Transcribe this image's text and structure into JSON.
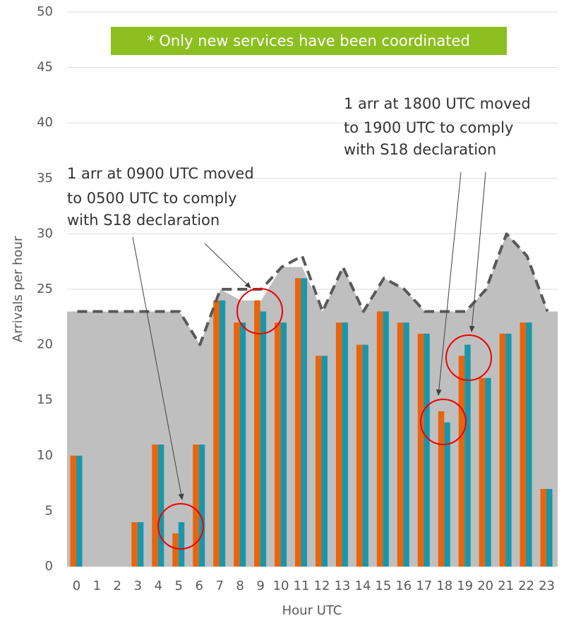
{
  "chart_data": {
    "type": "bar",
    "categories": [
      "0",
      "1",
      "2",
      "3",
      "4",
      "5",
      "6",
      "7",
      "8",
      "9",
      "10",
      "11",
      "12",
      "13",
      "14",
      "15",
      "16",
      "17",
      "18",
      "19",
      "20",
      "21",
      "22",
      "23"
    ],
    "series": [
      {
        "color": "#e8650d",
        "values": [
          10,
          0,
          0,
          4,
          11,
          3,
          11,
          24,
          22,
          24,
          22,
          26,
          19,
          22,
          20,
          23,
          22,
          21,
          14,
          19,
          17,
          21,
          22,
          7
        ]
      },
      {
        "color": "#1a96a8",
        "values": [
          10,
          0,
          0,
          4,
          11,
          4,
          11,
          24,
          22,
          23,
          22,
          26,
          19,
          22,
          20,
          23,
          22,
          21,
          13,
          20,
          17,
          21,
          22,
          7
        ]
      }
    ],
    "area": {
      "color": "#bfbfbf",
      "values": [
        23,
        23,
        23,
        23,
        23,
        23,
        20,
        25,
        24,
        24,
        27,
        27,
        23,
        27,
        23,
        26,
        25,
        23,
        23,
        23,
        25,
        30,
        28,
        23
      ]
    },
    "line": {
      "color": "#595959",
      "dashed": true,
      "values": [
        23,
        23,
        23,
        23,
        23,
        23,
        20,
        25,
        25,
        25,
        27,
        28,
        23,
        27,
        23,
        26,
        25,
        23,
        23,
        23,
        25,
        30,
        28,
        23
      ]
    },
    "ylim": [
      0,
      50
    ],
    "yticks": [
      0,
      5,
      10,
      15,
      20,
      25,
      30,
      35,
      40,
      45,
      50
    ],
    "grid": true,
    "ylabel": "Arrivals per hour",
    "xlabel": "Hour UTC",
    "banner": "* Only new services have been coordinated",
    "annotations": [
      {
        "lines": [
          "1 arr at 0900 UTC moved",
          "to 0500 UTC to comply",
          "with S18 declaration"
        ]
      },
      {
        "lines": [
          "1 arr at 1800 UTC moved",
          "to 1900 UTC to comply",
          "with S18 declaration"
        ]
      }
    ]
  }
}
